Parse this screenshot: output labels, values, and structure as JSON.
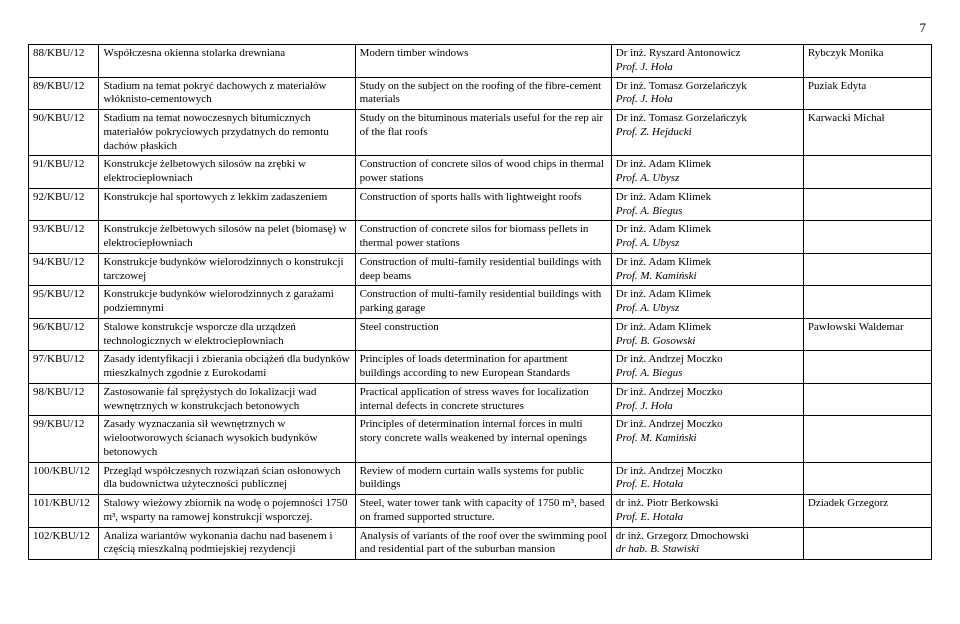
{
  "page_number": "7",
  "rows": [
    {
      "id": "88/KBU/12",
      "pl": "Współczesna okienna stolarka drewniana",
      "en": "Modern timber windows",
      "sup": "Dr inż. Ryszard Antonowicz\nProf. J. Hoła",
      "student": "Rybczyk Monika"
    },
    {
      "id": "89/KBU/12",
      "pl": "Stadium na temat pokryć dachowych z materiałów włóknisto-cementowych",
      "en": "Study on the subject on the roofing of the fibre-cement materials",
      "sup": "Dr inż. Tomasz Gorzelańczyk\nProf. J. Hoła",
      "student": "Puziak Edyta"
    },
    {
      "id": "90/KBU/12",
      "pl": "Stadium na temat nowoczesnych bitumicznych materiałów pokryciowych przydatnych do remontu dachów płaskich",
      "en": "Study on the bituminous materials useful for the rep air of the flat roofs",
      "sup": "Dr inż. Tomasz Gorzelańczyk\nProf. Z. Hejducki",
      "student": "Karwacki Michał"
    },
    {
      "id": "91/KBU/12",
      "pl": "Konstrukcje żelbetowych silosów na zrębki w elektrociepłowniach",
      "en": "Construction of concrete silos of wood chips in thermal power stations",
      "sup": "Dr inż. Adam Klimek\nProf. A. Ubysz",
      "student": ""
    },
    {
      "id": "92/KBU/12",
      "pl": "Konstrukcje hal sportowych z lekkim zadaszeniem",
      "en": "Construction of sports halls with lightweight roofs",
      "sup": "Dr inż. Adam Klimek\nProf. A. Biegus",
      "student": ""
    },
    {
      "id": "93/KBU/12",
      "pl": "Konstrukcje żelbetowych silosów na pelet (biomasę) w elektrociepłowniach",
      "en": "Construction of concrete silos for biomass pellets in thermal power stations",
      "sup": "Dr inż. Adam Klimek\nProf. A. Ubysz",
      "student": ""
    },
    {
      "id": "94/KBU/12",
      "pl": "Konstrukcje budynków wielorodzinnych o konstrukcji tarczowej",
      "en": "Construction of multi-family residential buildings with deep beams",
      "sup": "Dr inż. Adam Klimek\nProf. M. Kamiński",
      "student": ""
    },
    {
      "id": "95/KBU/12",
      "pl": "Konstrukcje budynków wielorodzinnych z garażami podziemnymi",
      "en": "Construction of multi-family residential buildings with parking garage",
      "sup": "Dr inż. Adam Klimek\nProf. A. Ubysz",
      "student": ""
    },
    {
      "id": "96/KBU/12",
      "pl": "Stalowe konstrukcje wsporcze dla urządzeń technologicznych w elektrociepłowniach",
      "en": "Steel construction",
      "sup": "Dr inż. Adam Klimek\nProf. B. Gosowski",
      "student": "Pawłowski Waldemar"
    },
    {
      "id": "97/KBU/12",
      "pl": "Zasady identyfikacji i zbierania obciążeń dla budynków mieszkalnych zgodnie z Eurokodami",
      "en": "Principles of loads determination for apartment buildings according to new European Standards",
      "sup": "Dr inż. Andrzej Moczko\nProf. A. Biegus",
      "student": ""
    },
    {
      "id": "98/KBU/12",
      "pl": "Zastosowanie fal sprężystych do lokalizacji wad wewnętrznych w konstrukcjach betonowych",
      "en": "Practical application of stress waves for localization internal defects in concrete structures",
      "sup": "Dr inż. Andrzej Moczko\nProf. J. Hoła",
      "student": ""
    },
    {
      "id": "99/KBU/12",
      "pl": "Zasady wyznaczania sił wewnętrznych w wielootworowych ścianach wysokich budynków betonowych",
      "en": "Principles of determination internal forces in multi story concrete walls weakened by internal openings",
      "sup": "Dr inż. Andrzej Moczko\nProf. M. Kamiński",
      "student": ""
    },
    {
      "id": "100/KBU/12",
      "pl": "Przegląd współczesnych rozwiązań ścian osłonowych dla budownictwa użyteczności publicznej",
      "en": "Review of modern curtain walls systems for public buildings",
      "sup": "Dr inż. Andrzej Moczko\nProf. E. Hotała",
      "student": ""
    },
    {
      "id": "101/KBU/12",
      "pl": "Stalowy wieżowy zbiornik na wodę o pojemności 1750 m³, wsparty na ramowej konstrukcji wsporczej.",
      "en": "Steel, water tower tank with capacity of 1750 m³, based on framed supported structure.",
      "sup": "dr inż. Piotr Berkowski\nProf. E. Hotała",
      "student": "Dziadek Grzegorz"
    },
    {
      "id": "102/KBU/12",
      "pl": "Analiza wariantów wykonania dachu nad basenem i częścią mieszkalną podmiejskiej rezydencji",
      "en": "Analysis of variants of the roof over the swimming pool and residential part of the suburban mansion",
      "sup": "dr inż. Grzegorz Dmochowski\ndr hab. B. Stawiski",
      "student": ""
    }
  ]
}
